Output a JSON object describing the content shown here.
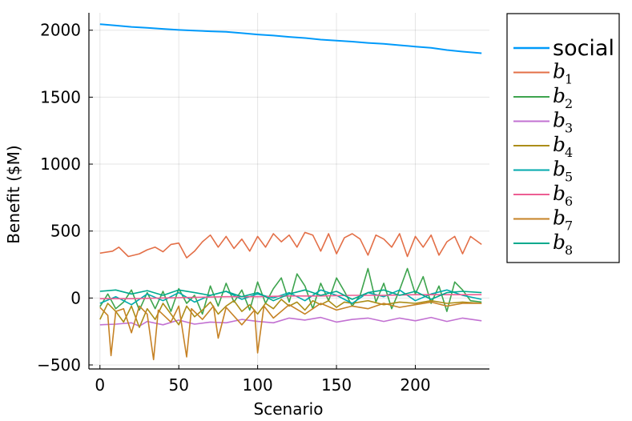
{
  "chart_data": {
    "type": "line",
    "xlabel": "Scenario",
    "ylabel": "Benefit ($M)",
    "xlim": [
      -7,
      247
    ],
    "ylim": [
      -530,
      2130
    ],
    "x_ticks": [
      0,
      50,
      100,
      150,
      200
    ],
    "y_ticks": [
      -500,
      0,
      500,
      1000,
      1500,
      2000
    ],
    "x_tick_labels": [
      "0",
      "50",
      "100",
      "150",
      "200"
    ],
    "y_tick_labels": [
      "−500",
      "0",
      "500",
      "1000",
      "1500",
      "2000"
    ],
    "grid": true,
    "legend_position": "outside-top-right",
    "series": [
      {
        "name": "social",
        "label_base": "social",
        "label_sub": "",
        "color": "#009AFA",
        "stroke_width": 2,
        "points": [
          [
            0,
            2045
          ],
          [
            10,
            2035
          ],
          [
            20,
            2025
          ],
          [
            30,
            2018
          ],
          [
            40,
            2010
          ],
          [
            50,
            2002
          ],
          [
            60,
            1997
          ],
          [
            70,
            1992
          ],
          [
            80,
            1988
          ],
          [
            90,
            1978
          ],
          [
            100,
            1968
          ],
          [
            110,
            1960
          ],
          [
            120,
            1950
          ],
          [
            130,
            1942
          ],
          [
            140,
            1930
          ],
          [
            150,
            1922
          ],
          [
            160,
            1915
          ],
          [
            170,
            1905
          ],
          [
            180,
            1898
          ],
          [
            190,
            1888
          ],
          [
            200,
            1878
          ],
          [
            210,
            1868
          ],
          [
            220,
            1852
          ],
          [
            230,
            1840
          ],
          [
            242,
            1828
          ]
        ]
      },
      {
        "name": "b1",
        "label_base": "b",
        "label_sub": "1",
        "color": "#E36F47",
        "stroke_width": 1.6,
        "points": [
          [
            0,
            335
          ],
          [
            8,
            350
          ],
          [
            12,
            380
          ],
          [
            18,
            310
          ],
          [
            25,
            330
          ],
          [
            30,
            360
          ],
          [
            35,
            380
          ],
          [
            40,
            345
          ],
          [
            45,
            400
          ],
          [
            50,
            410
          ],
          [
            55,
            300
          ],
          [
            60,
            350
          ],
          [
            65,
            420
          ],
          [
            70,
            470
          ],
          [
            75,
            380
          ],
          [
            80,
            460
          ],
          [
            85,
            370
          ],
          [
            90,
            440
          ],
          [
            95,
            350
          ],
          [
            100,
            460
          ],
          [
            105,
            380
          ],
          [
            110,
            480
          ],
          [
            115,
            420
          ],
          [
            120,
            470
          ],
          [
            125,
            380
          ],
          [
            130,
            490
          ],
          [
            135,
            470
          ],
          [
            140,
            350
          ],
          [
            145,
            480
          ],
          [
            150,
            330
          ],
          [
            155,
            450
          ],
          [
            160,
            480
          ],
          [
            165,
            440
          ],
          [
            170,
            320
          ],
          [
            175,
            470
          ],
          [
            180,
            440
          ],
          [
            185,
            380
          ],
          [
            190,
            480
          ],
          [
            195,
            310
          ],
          [
            200,
            460
          ],
          [
            205,
            380
          ],
          [
            210,
            470
          ],
          [
            215,
            320
          ],
          [
            220,
            420
          ],
          [
            225,
            460
          ],
          [
            230,
            330
          ],
          [
            235,
            460
          ],
          [
            242,
            400
          ]
        ]
      },
      {
        "name": "b2",
        "label_base": "b",
        "label_sub": "2",
        "color": "#3EA44E",
        "stroke_width": 1.6,
        "points": [
          [
            0,
            -65
          ],
          [
            5,
            30
          ],
          [
            10,
            -80
          ],
          [
            15,
            -30
          ],
          [
            20,
            60
          ],
          [
            25,
            -90
          ],
          [
            30,
            40
          ],
          [
            35,
            -80
          ],
          [
            40,
            50
          ],
          [
            45,
            -100
          ],
          [
            50,
            70
          ],
          [
            55,
            -40
          ],
          [
            60,
            20
          ],
          [
            65,
            -120
          ],
          [
            70,
            90
          ],
          [
            75,
            -60
          ],
          [
            80,
            110
          ],
          [
            85,
            -30
          ],
          [
            90,
            60
          ],
          [
            95,
            -90
          ],
          [
            100,
            120
          ],
          [
            105,
            -40
          ],
          [
            110,
            70
          ],
          [
            115,
            150
          ],
          [
            120,
            -30
          ],
          [
            125,
            180
          ],
          [
            130,
            90
          ],
          [
            135,
            -80
          ],
          [
            140,
            110
          ],
          [
            145,
            -20
          ],
          [
            150,
            150
          ],
          [
            155,
            50
          ],
          [
            160,
            -60
          ],
          [
            165,
            20
          ],
          [
            170,
            220
          ],
          [
            175,
            -30
          ],
          [
            180,
            110
          ],
          [
            185,
            -80
          ],
          [
            190,
            60
          ],
          [
            195,
            220
          ],
          [
            200,
            30
          ],
          [
            205,
            160
          ],
          [
            210,
            -40
          ],
          [
            215,
            90
          ],
          [
            220,
            -100
          ],
          [
            225,
            120
          ],
          [
            230,
            60
          ],
          [
            235,
            -20
          ],
          [
            242,
            -30
          ]
        ]
      },
      {
        "name": "b3",
        "label_base": "b",
        "label_sub": "3",
        "color": "#C271D2",
        "stroke_width": 1.6,
        "points": [
          [
            0,
            -200
          ],
          [
            10,
            -195
          ],
          [
            20,
            -185
          ],
          [
            25,
            -210
          ],
          [
            30,
            -175
          ],
          [
            40,
            -200
          ],
          [
            50,
            -165
          ],
          [
            60,
            -195
          ],
          [
            70,
            -180
          ],
          [
            80,
            -185
          ],
          [
            90,
            -160
          ],
          [
            100,
            -175
          ],
          [
            110,
            -185
          ],
          [
            120,
            -150
          ],
          [
            130,
            -165
          ],
          [
            140,
            -145
          ],
          [
            150,
            -180
          ],
          [
            160,
            -160
          ],
          [
            170,
            -150
          ],
          [
            180,
            -175
          ],
          [
            190,
            -150
          ],
          [
            200,
            -170
          ],
          [
            210,
            -145
          ],
          [
            220,
            -175
          ],
          [
            230,
            -150
          ],
          [
            242,
            -170
          ]
        ]
      },
      {
        "name": "b4",
        "label_base": "b",
        "label_sub": "4",
        "color": "#AC8D18",
        "stroke_width": 1.6,
        "points": [
          [
            0,
            -160
          ],
          [
            5,
            -40
          ],
          [
            10,
            -100
          ],
          [
            15,
            -180
          ],
          [
            20,
            -60
          ],
          [
            25,
            -220
          ],
          [
            30,
            -80
          ],
          [
            35,
            -160
          ],
          [
            40,
            -40
          ],
          [
            45,
            -120
          ],
          [
            50,
            -200
          ],
          [
            55,
            -60
          ],
          [
            60,
            -140
          ],
          [
            65,
            -90
          ],
          [
            70,
            -30
          ],
          [
            75,
            -120
          ],
          [
            80,
            -60
          ],
          [
            85,
            -20
          ],
          [
            90,
            -100
          ],
          [
            95,
            -50
          ],
          [
            100,
            -120
          ],
          [
            105,
            -40
          ],
          [
            110,
            -80
          ],
          [
            115,
            -10
          ],
          [
            120,
            -60
          ],
          [
            125,
            -30
          ],
          [
            130,
            -90
          ],
          [
            135,
            -20
          ],
          [
            140,
            -50
          ],
          [
            145,
            -20
          ],
          [
            150,
            -70
          ],
          [
            155,
            -30
          ],
          [
            160,
            -40
          ],
          [
            170,
            -20
          ],
          [
            180,
            -50
          ],
          [
            190,
            -30
          ],
          [
            200,
            -40
          ],
          [
            210,
            -20
          ],
          [
            220,
            -40
          ],
          [
            230,
            -30
          ],
          [
            242,
            -40
          ]
        ]
      },
      {
        "name": "b5",
        "label_base": "b",
        "label_sub": "5",
        "color": "#00A9AD",
        "stroke_width": 1.6,
        "points": [
          [
            0,
            -40
          ],
          [
            10,
            10
          ],
          [
            20,
            -50
          ],
          [
            30,
            30
          ],
          [
            40,
            -20
          ],
          [
            50,
            40
          ],
          [
            60,
            -30
          ],
          [
            70,
            20
          ],
          [
            80,
            50
          ],
          [
            90,
            -10
          ],
          [
            100,
            30
          ],
          [
            110,
            0
          ],
          [
            120,
            40
          ],
          [
            130,
            -20
          ],
          [
            140,
            60
          ],
          [
            150,
            20
          ],
          [
            160,
            -40
          ],
          [
            170,
            40
          ],
          [
            180,
            10
          ],
          [
            190,
            60
          ],
          [
            200,
            -20
          ],
          [
            210,
            30
          ],
          [
            220,
            60
          ],
          [
            230,
            20
          ],
          [
            242,
            -10
          ]
        ]
      },
      {
        "name": "b6",
        "label_base": "b",
        "label_sub": "6",
        "color": "#ED5E93",
        "stroke_width": 1.6,
        "points": [
          [
            0,
            -5
          ],
          [
            20,
            -5
          ],
          [
            40,
            0
          ],
          [
            60,
            5
          ],
          [
            80,
            10
          ],
          [
            100,
            10
          ],
          [
            120,
            15
          ],
          [
            140,
            15
          ],
          [
            160,
            20
          ],
          [
            180,
            20
          ],
          [
            200,
            25
          ],
          [
            220,
            25
          ],
          [
            242,
            25
          ]
        ]
      },
      {
        "name": "b7",
        "label_base": "b",
        "label_sub": "7",
        "color": "#C68225",
        "stroke_width": 1.6,
        "points": [
          [
            0,
            -70
          ],
          [
            5,
            -130
          ],
          [
            7,
            -430
          ],
          [
            10,
            -100
          ],
          [
            15,
            -80
          ],
          [
            20,
            -260
          ],
          [
            25,
            -60
          ],
          [
            30,
            -120
          ],
          [
            34,
            -460
          ],
          [
            37,
            -90
          ],
          [
            45,
            -180
          ],
          [
            50,
            -60
          ],
          [
            55,
            -440
          ],
          [
            58,
            -80
          ],
          [
            65,
            -160
          ],
          [
            72,
            -60
          ],
          [
            75,
            -300
          ],
          [
            80,
            -70
          ],
          [
            90,
            -200
          ],
          [
            98,
            -90
          ],
          [
            100,
            -410
          ],
          [
            104,
            -60
          ],
          [
            110,
            -150
          ],
          [
            120,
            -50
          ],
          [
            130,
            -120
          ],
          [
            140,
            -40
          ],
          [
            150,
            -90
          ],
          [
            160,
            -60
          ],
          [
            170,
            -80
          ],
          [
            180,
            -40
          ],
          [
            190,
            -70
          ],
          [
            200,
            -50
          ],
          [
            210,
            -30
          ],
          [
            220,
            -60
          ],
          [
            230,
            -40
          ],
          [
            242,
            -40
          ]
        ]
      },
      {
        "name": "b8",
        "label_base": "b",
        "label_sub": "8",
        "color": "#00A98D",
        "stroke_width": 1.6,
        "points": [
          [
            0,
            50
          ],
          [
            10,
            60
          ],
          [
            20,
            30
          ],
          [
            30,
            55
          ],
          [
            40,
            20
          ],
          [
            50,
            60
          ],
          [
            60,
            40
          ],
          [
            70,
            20
          ],
          [
            80,
            50
          ],
          [
            90,
            10
          ],
          [
            100,
            40
          ],
          [
            110,
            -20
          ],
          [
            120,
            30
          ],
          [
            130,
            60
          ],
          [
            140,
            20
          ],
          [
            150,
            50
          ],
          [
            160,
            -10
          ],
          [
            170,
            40
          ],
          [
            180,
            60
          ],
          [
            190,
            20
          ],
          [
            200,
            50
          ],
          [
            210,
            -10
          ],
          [
            220,
            40
          ],
          [
            230,
            50
          ],
          [
            242,
            40
          ]
        ]
      }
    ]
  }
}
